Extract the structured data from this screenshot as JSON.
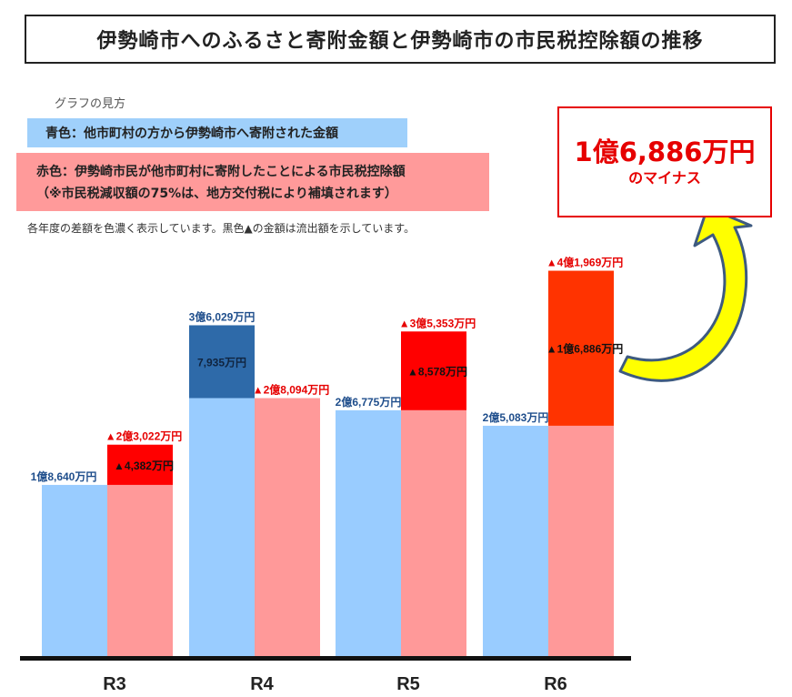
{
  "title": "伊勢崎市へのふるさと寄附金額と伊勢崎市の市民税控除額の推移",
  "howto_label": "グラフの見方",
  "legend": {
    "blue": "青色：他市町村の方から伊勢崎市へ寄附された金額",
    "red_line1": "赤色：伊勢崎市民が他市町村に寄附したことによる市民税控除額",
    "red_line2": "（※市民税減収額の75%は、地方交付税により補填されます）"
  },
  "note": "各年度の差額を色濃く表示しています。黒色▲の金額は流出額を示しています。",
  "callout": {
    "amount": "1億6,886万円",
    "caption": "のマイナス"
  },
  "colors": {
    "blue_light": "#99ccff",
    "blue_dark": "#2e6aa9",
    "red_light": "#ff9999",
    "red_dark": "#ff0000",
    "red_dark_r6": "#ff3300",
    "blue_label": "#1f4e8c",
    "red_label": "#e60000",
    "arrow": "#ffff00"
  },
  "chart_data": {
    "type": "bar",
    "categories": [
      "R3",
      "R4",
      "R5",
      "R6"
    ],
    "unit": "万円",
    "series": [
      {
        "values": [
          18640,
          36029,
          26775,
          25083
        ],
        "labels": [
          "1億8,640万円",
          "3億6,029万円",
          "2億6,775万円",
          "2億5,083万円"
        ]
      },
      {
        "values": [
          23022,
          28094,
          35353,
          41969
        ],
        "labels": [
          "▲2億3,022万円",
          "▲2億8,094万円",
          "▲3億5,353万円",
          "▲4億1,969万円"
        ]
      }
    ],
    "differences": [
      {
        "category": "R3",
        "value": -4382,
        "label": "▲4,382万円"
      },
      {
        "category": "R4",
        "value": 7935,
        "label": "7,935万円"
      },
      {
        "category": "R5",
        "value": -8578,
        "label": "▲8,578万円"
      },
      {
        "category": "R6",
        "value": -16886,
        "label": "▲1億6,886万円"
      }
    ],
    "ylim": [
      0,
      50000
    ]
  }
}
